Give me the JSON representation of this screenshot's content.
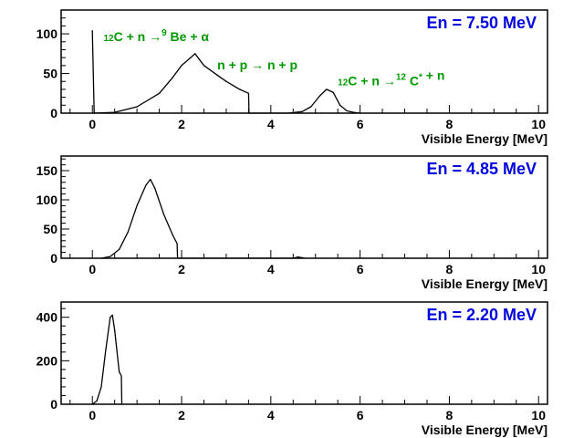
{
  "colors": {
    "frame": "#000000",
    "histogram": "#000000",
    "energy_label": "#0000e0",
    "annotation": "#009900"
  },
  "chart_data": [
    {
      "type": "histogram",
      "energy_label": "En = 7.50 MeV",
      "xlabel": "Visible Energy [MeV]",
      "xlim": [
        -0.7,
        10.2
      ],
      "ylim": [
        0,
        130
      ],
      "x_ticks": [
        0,
        2,
        4,
        6,
        8,
        10
      ],
      "y_ticks": [
        0,
        50,
        100
      ],
      "annotations": [
        {
          "name": "annotation-c12-alpha",
          "x": 0.25,
          "y": 84,
          "parts": [
            [
              "",
              "12"
            ],
            [
              "C + n ",
              ""
            ],
            [
              "→",
              ""
            ],
            [
              " ",
              "9"
            ],
            [
              "Be + ",
              ""
            ],
            [
              "α",
              ""
            ]
          ]
        },
        {
          "name": "annotation-np",
          "x": 2.8,
          "y": 55,
          "parts": [
            [
              "n + p ",
              ""
            ],
            [
              "→",
              ""
            ],
            [
              " n + p",
              ""
            ]
          ]
        },
        {
          "name": "annotation-c12-star",
          "x": 5.5,
          "y": 28,
          "parts": [
            [
              "",
              "12"
            ],
            [
              "C + n ",
              ""
            ],
            [
              "→",
              ""
            ],
            [
              " ",
              "12"
            ],
            [
              "C",
              ""
            ],
            [
              "",
              "*"
            ],
            [
              " + n",
              ""
            ]
          ]
        }
      ],
      "x": [
        0.0,
        0.04,
        0.5,
        1.0,
        1.5,
        1.8,
        2.0,
        2.2,
        2.3,
        2.5,
        2.8,
        3.0,
        3.3,
        3.5,
        3.51,
        4.4,
        4.7,
        4.9,
        5.1,
        5.25,
        5.4,
        5.55,
        5.7,
        5.85,
        6.0
      ],
      "y": [
        104,
        0,
        1,
        8,
        25,
        45,
        60,
        70,
        75,
        60,
        48,
        40,
        30,
        25,
        0,
        0,
        2,
        8,
        22,
        30,
        26,
        10,
        3,
        1,
        0
      ]
    },
    {
      "type": "histogram",
      "energy_label": "En = 4.85 MeV",
      "xlabel": "Visible Energy [MeV]",
      "xlim": [
        -0.7,
        10.2
      ],
      "ylim": [
        0,
        175
      ],
      "x_ticks": [
        0,
        2,
        4,
        6,
        8,
        10
      ],
      "y_ticks": [
        0,
        50,
        100,
        150
      ],
      "annotations": [],
      "x": [
        0.2,
        0.4,
        0.6,
        0.8,
        1.0,
        1.2,
        1.3,
        1.4,
        1.6,
        1.8,
        1.9,
        1.91,
        4.5,
        4.6,
        4.7,
        4.75
      ],
      "y": [
        0,
        3,
        15,
        45,
        90,
        125,
        135,
        120,
        75,
        40,
        25,
        0,
        0,
        2,
        1,
        0
      ]
    },
    {
      "type": "histogram",
      "energy_label": "En = 2.20 MeV",
      "xlabel": "Visible Energy [MeV]",
      "xlim": [
        -0.7,
        10.2
      ],
      "ylim": [
        0,
        470
      ],
      "x_ticks": [
        0,
        2,
        4,
        6,
        8,
        10
      ],
      "y_ticks": [
        0,
        200,
        400
      ],
      "annotations": [],
      "x": [
        0.0,
        0.1,
        0.2,
        0.3,
        0.4,
        0.45,
        0.5,
        0.6,
        0.65,
        0.66
      ],
      "y": [
        0,
        15,
        80,
        250,
        400,
        410,
        340,
        150,
        130,
        0
      ]
    }
  ]
}
